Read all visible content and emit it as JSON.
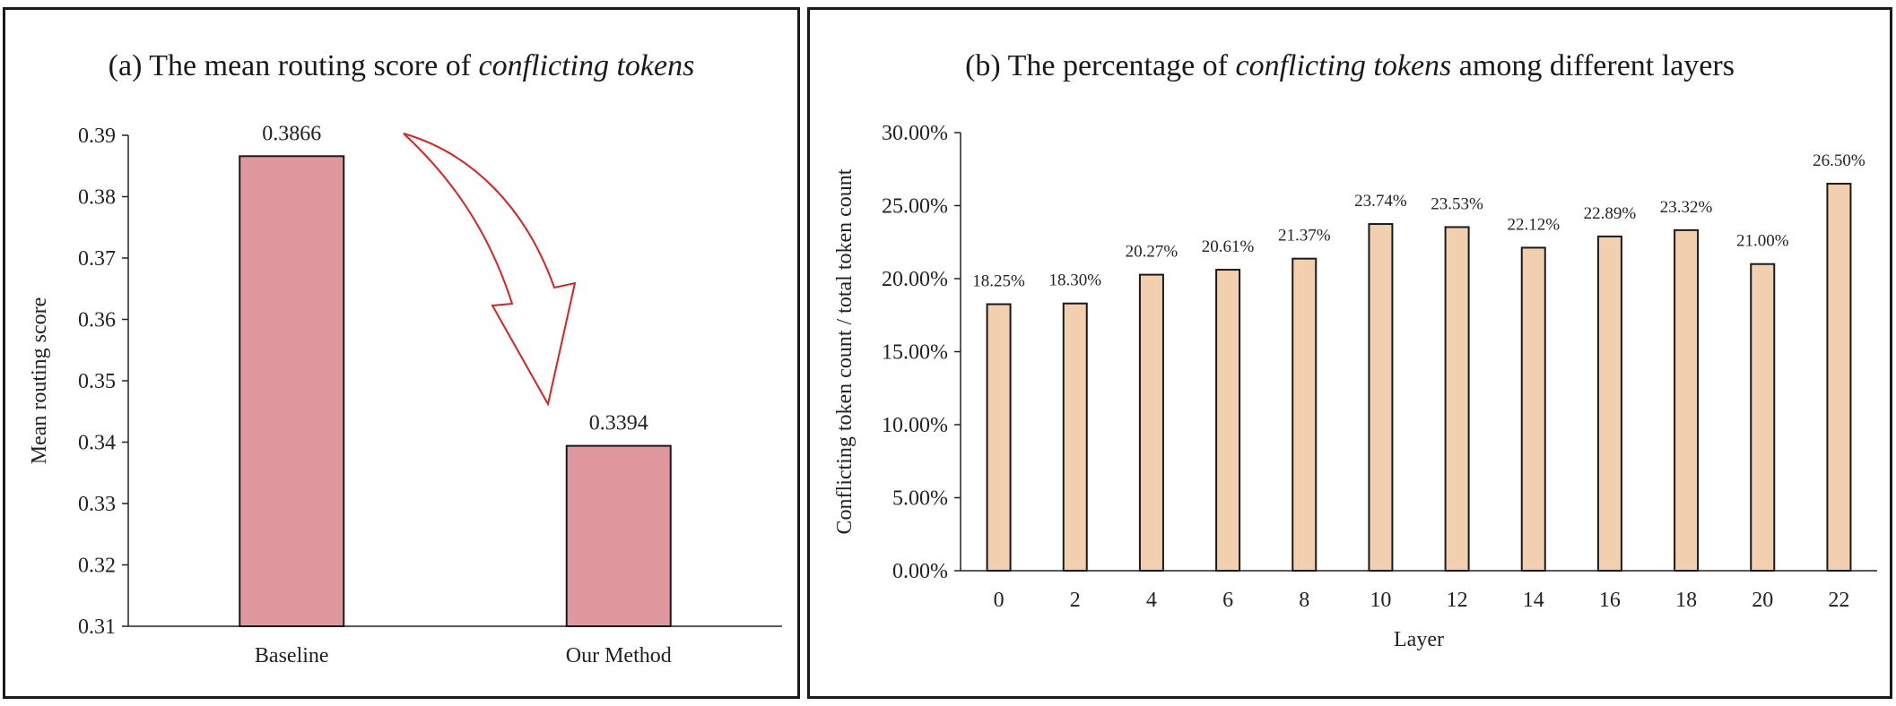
{
  "chart_data": [
    {
      "type": "bar",
      "title_prefix": "(a) The mean routing score of ",
      "title_emph": "conflicting tokens",
      "categories": [
        "Baseline",
        "Our Method"
      ],
      "values": [
        0.3866,
        0.3394
      ],
      "value_labels": [
        "0.3866",
        "0.3394"
      ],
      "ylabel": "Mean routing score",
      "xlabel": "",
      "ylim": [
        0.31,
        0.39
      ],
      "yticks": [
        "0.31",
        "0.32",
        "0.33",
        "0.34",
        "0.35",
        "0.36",
        "0.37",
        "0.38",
        "0.39"
      ],
      "bar_color": "#e0979e",
      "annotation": "red-curved-arrow-down",
      "annotation_color": "#e02020",
      "grid": false
    },
    {
      "type": "bar",
      "title_prefix": "(b) The percentage of ",
      "title_emph": "conflicting tokens",
      "title_suffix": " among different layers",
      "categories": [
        "0",
        "2",
        "4",
        "6",
        "8",
        "10",
        "12",
        "14",
        "16",
        "18",
        "20",
        "22"
      ],
      "values": [
        18.25,
        18.3,
        20.27,
        20.61,
        21.37,
        23.74,
        23.53,
        22.12,
        22.89,
        23.32,
        21.0,
        26.5
      ],
      "value_labels": [
        "18.25%",
        "18.30%",
        "20.27%",
        "20.61%",
        "21.37%",
        "23.74%",
        "23.53%",
        "22.12%",
        "22.89%",
        "23.32%",
        "21.00%",
        "26.50%"
      ],
      "ylabel": "Conflicting token count / total token count",
      "xlabel": "Layer",
      "ylim": [
        0,
        30
      ],
      "yticks": [
        "0.00%",
        "5.00%",
        "10.00%",
        "15.00%",
        "20.00%",
        "25.00%",
        "30.00%"
      ],
      "bar_color": "#f2cfae",
      "grid": false
    }
  ]
}
